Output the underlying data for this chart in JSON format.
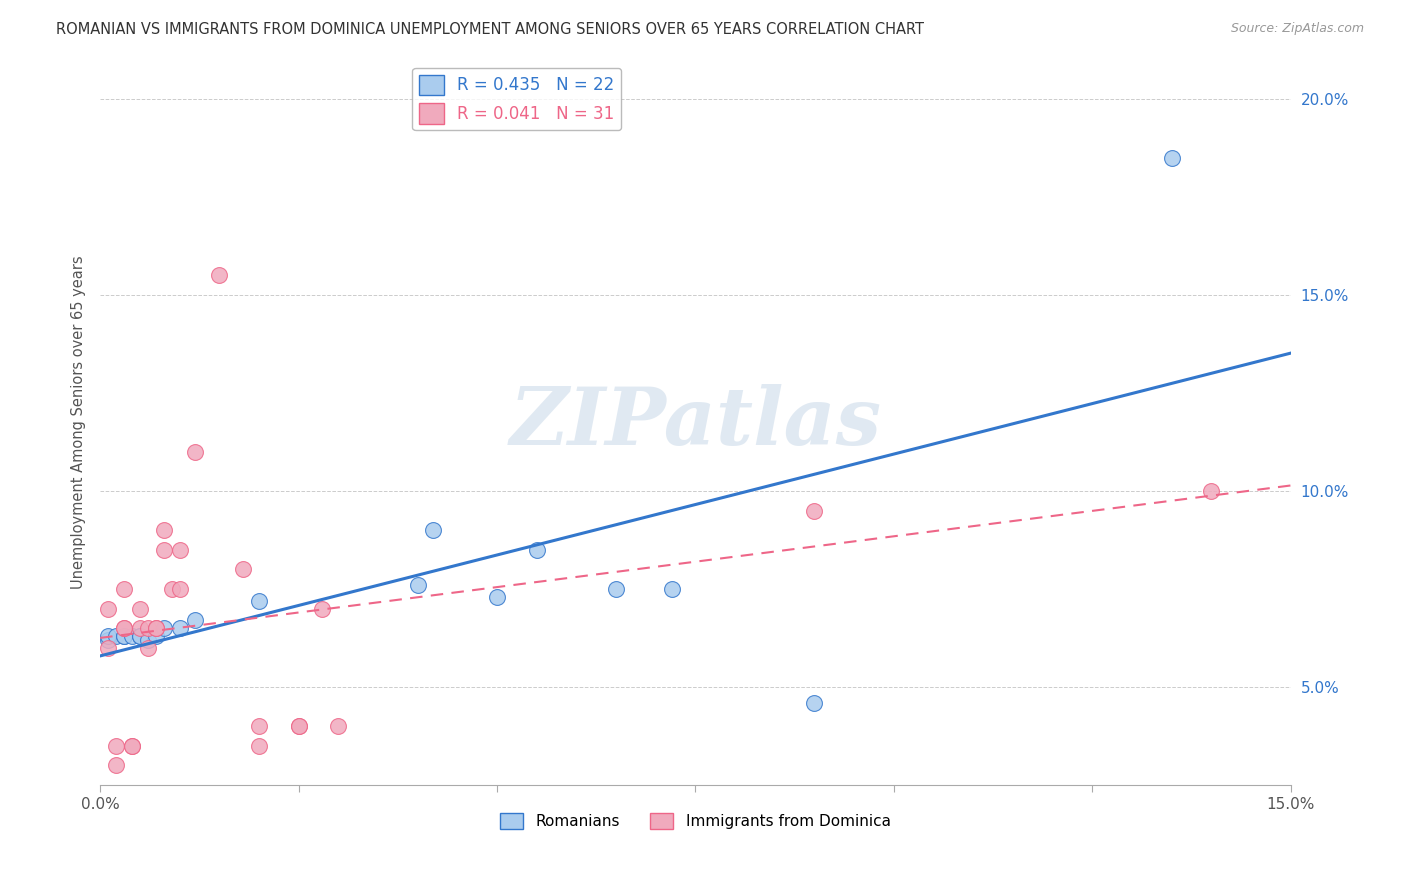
{
  "title": "ROMANIAN VS IMMIGRANTS FROM DOMINICA UNEMPLOYMENT AMONG SENIORS OVER 65 YEARS CORRELATION CHART",
  "source": "Source: ZipAtlas.com",
  "ylabel": "Unemployment Among Seniors over 65 years",
  "xlim": [
    0.0,
    0.15
  ],
  "ylim": [
    0.025,
    0.21
  ],
  "yticks": [
    0.05,
    0.1,
    0.15,
    0.2
  ],
  "ytick_labels": [
    "5.0%",
    "10.0%",
    "15.0%",
    "20.0%"
  ],
  "xtick_positions": [
    0.0,
    0.025,
    0.05,
    0.075,
    0.1,
    0.125,
    0.15
  ],
  "xtick_labels_show": [
    "0.0%",
    "",
    "",
    "",
    "",
    "",
    "15.0%"
  ],
  "legend_label_romanians": "Romanians",
  "legend_label_dominica": "Immigrants from Dominica",
  "romanians_color": "#aaccee",
  "dominica_color": "#f0aabd",
  "regression_romanian_color": "#3377cc",
  "regression_dominica_color": "#ee6688",
  "watermark": "ZIPatlas",
  "romanians_R": 0.435,
  "romanians_N": 22,
  "dominica_R": 0.041,
  "dominica_N": 31,
  "romanians_x": [
    0.001,
    0.001,
    0.002,
    0.003,
    0.003,
    0.004,
    0.005,
    0.005,
    0.006,
    0.007,
    0.008,
    0.01,
    0.012,
    0.02,
    0.04,
    0.042,
    0.05,
    0.055,
    0.065,
    0.072,
    0.09,
    0.135
  ],
  "romanians_y": [
    0.062,
    0.063,
    0.063,
    0.063,
    0.063,
    0.063,
    0.063,
    0.063,
    0.062,
    0.063,
    0.065,
    0.065,
    0.067,
    0.072,
    0.076,
    0.09,
    0.073,
    0.085,
    0.075,
    0.075,
    0.046,
    0.185
  ],
  "dominica_x": [
    0.001,
    0.001,
    0.002,
    0.002,
    0.003,
    0.003,
    0.003,
    0.004,
    0.004,
    0.005,
    0.005,
    0.006,
    0.006,
    0.007,
    0.007,
    0.008,
    0.008,
    0.009,
    0.01,
    0.01,
    0.012,
    0.015,
    0.018,
    0.02,
    0.02,
    0.025,
    0.025,
    0.028,
    0.03,
    0.09,
    0.14
  ],
  "dominica_y": [
    0.06,
    0.07,
    0.035,
    0.03,
    0.065,
    0.075,
    0.065,
    0.035,
    0.035,
    0.065,
    0.07,
    0.06,
    0.065,
    0.065,
    0.065,
    0.09,
    0.085,
    0.075,
    0.075,
    0.085,
    0.11,
    0.155,
    0.08,
    0.035,
    0.04,
    0.04,
    0.04,
    0.07,
    0.04,
    0.095,
    0.1
  ]
}
